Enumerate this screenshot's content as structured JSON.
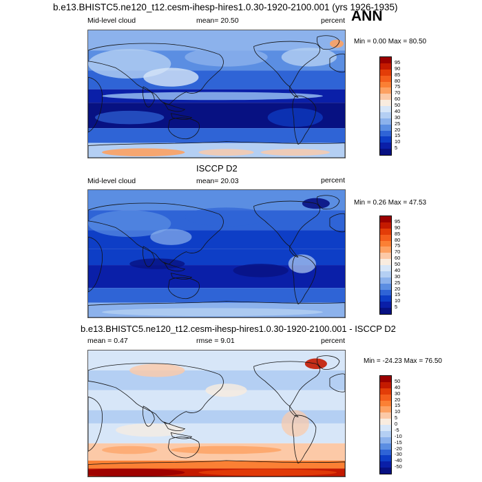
{
  "header": {
    "title": "b.e13.BHISTC5.ne120_t12.cesm-ihesp-hires1.0.30-1920-2100.001 (yrs 1926-1935)",
    "season": "ANN"
  },
  "panels": [
    {
      "id": "model",
      "title": "",
      "left_label": "Mid-level cloud",
      "stat_label": "mean=  20.50",
      "unit": "percent",
      "minmax": "Min =   0.00 Max =  80.50"
    },
    {
      "id": "obs",
      "title": "ISCCP D2",
      "left_label": "Mid-level cloud",
      "stat_label": "mean=  20.03",
      "unit": "percent",
      "minmax": "Min =  0.26 Max =  47.53"
    },
    {
      "id": "diff",
      "title": "b.e13.BHISTC5.ne120_t12.cesm-ihesp-hires1.0.30-1920-2100.001 - ISCCP D2",
      "left_label": "mean =   0.47",
      "stat_label": "rmse =   9.01",
      "unit": "percent",
      "minmax": "Min = -24.23 Max =  76.50"
    }
  ],
  "chart_data": [
    {
      "type": "heatmap",
      "title": "",
      "variable": "Mid-level cloud",
      "mean": 20.5,
      "min": 0.0,
      "max": 80.5,
      "units": "percent",
      "colorbar_levels": [
        "95",
        "90",
        "85",
        "80",
        "75",
        "70",
        "60",
        "50",
        "40",
        "30",
        "25",
        "20",
        "15",
        "10",
        "5"
      ],
      "colorbar_colors": [
        "#9b0000",
        "#c41a00",
        "#e33d08",
        "#f45e1c",
        "#fb8034",
        "#fda162",
        "#fcc9a7",
        "#f9ecdf",
        "#d7e6f8",
        "#b4cff3",
        "#8cb2ec",
        "#5b8ee2",
        "#2f64d6",
        "#0e3ec6",
        "#0a1fa8",
        "#071182"
      ]
    },
    {
      "type": "heatmap",
      "title": "ISCCP D2",
      "variable": "Mid-level cloud",
      "mean": 20.03,
      "min": 0.26,
      "max": 47.53,
      "units": "percent",
      "colorbar_levels": [
        "95",
        "90",
        "85",
        "80",
        "75",
        "70",
        "60",
        "50",
        "40",
        "30",
        "25",
        "20",
        "15",
        "10",
        "5"
      ],
      "colorbar_colors": [
        "#9b0000",
        "#c41a00",
        "#e33d08",
        "#f45e1c",
        "#fb8034",
        "#fda162",
        "#fcc9a7",
        "#f9ecdf",
        "#d7e6f8",
        "#b4cff3",
        "#8cb2ec",
        "#5b8ee2",
        "#2f64d6",
        "#0e3ec6",
        "#0a1fa8",
        "#071182"
      ]
    },
    {
      "type": "heatmap",
      "title": "b.e13.BHISTC5.ne120_t12.cesm-ihesp-hires1.0.30-1920-2100.001 - ISCCP D2",
      "mean": 0.47,
      "rmse": 9.01,
      "min": -24.23,
      "max": 76.5,
      "units": "percent",
      "colorbar_levels": [
        "50",
        "40",
        "30",
        "20",
        "15",
        "10",
        "5",
        "0",
        "-5",
        "-10",
        "-15",
        "-20",
        "-30",
        "-40",
        "-50"
      ],
      "colorbar_colors": [
        "#9b0000",
        "#c41a00",
        "#e33d08",
        "#f45e1c",
        "#fb8034",
        "#fda162",
        "#fcc9a7",
        "#f9ecdf",
        "#d7e6f8",
        "#b4cff3",
        "#8cb2ec",
        "#5b8ee2",
        "#2f64d6",
        "#0e3ec6",
        "#0a1fa8",
        "#071182"
      ]
    }
  ]
}
